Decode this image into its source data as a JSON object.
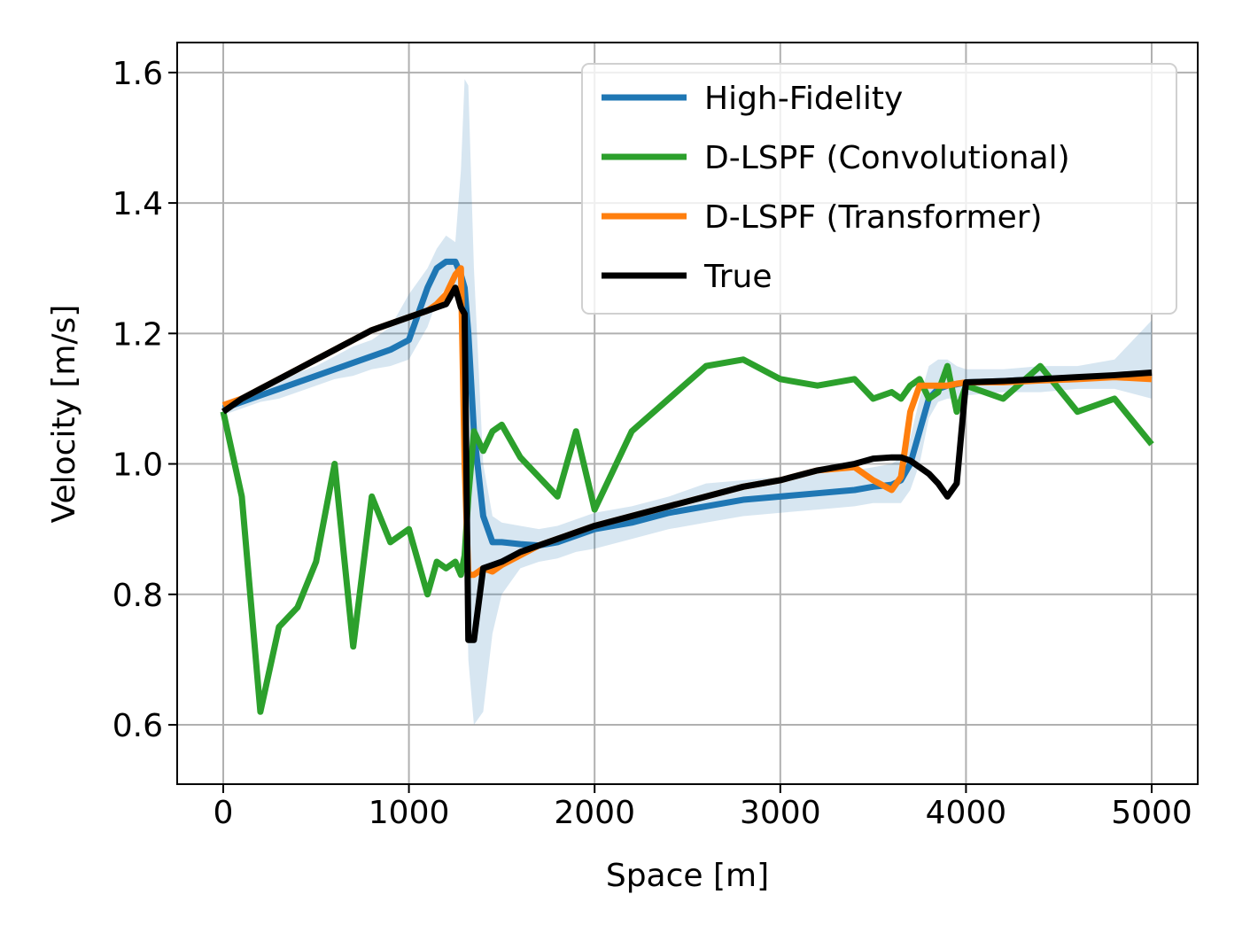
{
  "chart_data": {
    "type": "line",
    "xlabel": "Space [m]",
    "ylabel": "Velocity [m/s]",
    "x": [
      0,
      100,
      200,
      300,
      400,
      500,
      600,
      700,
      800,
      900,
      1000,
      1100,
      1150,
      1200,
      1250,
      1280,
      1300,
      1320,
      1350,
      1400,
      1450,
      1500,
      1600,
      1700,
      1800,
      1900,
      2000,
      2200,
      2400,
      2600,
      2800,
      3000,
      3200,
      3400,
      3500,
      3600,
      3650,
      3700,
      3750,
      3800,
      3850,
      3900,
      3950,
      4000,
      4200,
      4400,
      4600,
      4800,
      5000
    ],
    "series": [
      {
        "name": "High-Fidelity",
        "color": "#1f77b4",
        "values": [
          1.085,
          1.095,
          1.105,
          1.115,
          1.125,
          1.135,
          1.145,
          1.155,
          1.165,
          1.175,
          1.19,
          1.27,
          1.3,
          1.31,
          1.31,
          1.29,
          1.27,
          1.2,
          1.05,
          0.92,
          0.88,
          0.88,
          0.877,
          0.875,
          0.88,
          0.89,
          0.9,
          0.91,
          0.925,
          0.935,
          0.945,
          0.95,
          0.955,
          0.96,
          0.965,
          0.968,
          0.975,
          1.0,
          1.05,
          1.1,
          1.115,
          1.12,
          1.122,
          1.125,
          1.127,
          1.13,
          1.132,
          1.134,
          1.135
        ],
        "upper": [
          1.095,
          1.105,
          1.115,
          1.13,
          1.14,
          1.15,
          1.165,
          1.18,
          1.19,
          1.21,
          1.26,
          1.3,
          1.33,
          1.35,
          1.34,
          1.45,
          1.59,
          1.58,
          1.3,
          1.0,
          0.92,
          0.91,
          0.905,
          0.9,
          0.905,
          0.915,
          0.925,
          0.935,
          0.95,
          0.97,
          0.975,
          0.98,
          0.985,
          0.99,
          0.995,
          1.0,
          1.01,
          1.04,
          1.1,
          1.15,
          1.16,
          1.16,
          1.15,
          1.145,
          1.145,
          1.15,
          1.15,
          1.16,
          1.22
        ],
        "lower": [
          1.075,
          1.085,
          1.095,
          1.1,
          1.11,
          1.12,
          1.13,
          1.135,
          1.145,
          1.15,
          1.16,
          1.21,
          1.25,
          1.27,
          1.27,
          1.24,
          1.0,
          0.7,
          0.6,
          0.62,
          0.74,
          0.8,
          0.84,
          0.85,
          0.855,
          0.865,
          0.87,
          0.885,
          0.9,
          0.91,
          0.92,
          0.925,
          0.93,
          0.935,
          0.94,
          0.94,
          0.94,
          0.96,
          1.0,
          1.07,
          1.095,
          1.1,
          1.1,
          1.105,
          1.11,
          1.11,
          1.115,
          1.115,
          1.1
        ]
      },
      {
        "name": "D-LSPF (Convolutional)",
        "color": "#2ca02c",
        "values": [
          1.08,
          0.95,
          0.62,
          0.75,
          0.78,
          0.85,
          1.0,
          0.72,
          0.95,
          0.88,
          0.9,
          0.8,
          0.85,
          0.84,
          0.85,
          0.83,
          0.86,
          0.95,
          1.05,
          1.02,
          1.05,
          1.06,
          1.01,
          0.98,
          0.95,
          1.05,
          0.93,
          1.05,
          1.1,
          1.15,
          1.16,
          1.13,
          1.12,
          1.13,
          1.1,
          1.11,
          1.1,
          1.12,
          1.13,
          1.1,
          1.11,
          1.15,
          1.08,
          1.12,
          1.1,
          1.15,
          1.08,
          1.1,
          1.03
        ]
      },
      {
        "name": "D-LSPF (Transformer)",
        "color": "#ff7f0e",
        "values": [
          1.09,
          1.1,
          1.115,
          1.13,
          1.145,
          1.16,
          1.175,
          1.19,
          1.205,
          1.215,
          1.225,
          1.235,
          1.245,
          1.26,
          1.29,
          1.3,
          1.0,
          0.83,
          0.83,
          0.84,
          0.835,
          0.845,
          0.86,
          0.875,
          0.885,
          0.895,
          0.905,
          0.92,
          0.935,
          0.95,
          0.965,
          0.975,
          0.99,
          0.995,
          0.975,
          0.96,
          0.98,
          1.08,
          1.12,
          1.12,
          1.12,
          1.12,
          1.123,
          1.125,
          1.125,
          1.128,
          1.13,
          1.133,
          1.13
        ]
      },
      {
        "name": "True",
        "color": "#000000",
        "values": [
          1.08,
          1.1,
          1.115,
          1.13,
          1.145,
          1.16,
          1.175,
          1.19,
          1.205,
          1.215,
          1.225,
          1.235,
          1.24,
          1.245,
          1.27,
          1.24,
          1.23,
          0.73,
          0.73,
          0.84,
          0.845,
          0.85,
          0.865,
          0.875,
          0.885,
          0.895,
          0.905,
          0.92,
          0.935,
          0.95,
          0.965,
          0.975,
          0.99,
          1.0,
          1.008,
          1.01,
          1.01,
          1.005,
          0.995,
          0.985,
          0.97,
          0.95,
          0.97,
          1.125,
          1.127,
          1.13,
          1.133,
          1.136,
          1.14
        ]
      }
    ],
    "xlim": [
      -248,
      5248
    ],
    "ylim": [
      0.509,
      1.646
    ],
    "xticks": [
      0,
      1000,
      2000,
      3000,
      4000,
      5000
    ],
    "yticks": [
      0.6,
      0.8,
      {
        "value": 1,
        "label": "1.0"
      },
      1.2,
      1.4,
      1.6
    ],
    "grid": true,
    "legend": "upper right"
  }
}
